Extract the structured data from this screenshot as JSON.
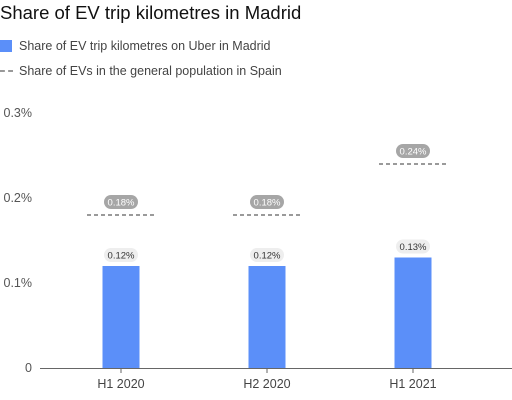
{
  "title": "Share of EV trip kilometres in Madrid",
  "legend": {
    "bar_label": "Share of EV trip kilometres on Uber in Madrid",
    "line_label": "Share of EVs in the general population in Spain"
  },
  "colors": {
    "bar": "#5b8ff9",
    "line": "#9a9a9a"
  },
  "chart_data": {
    "type": "bar",
    "categories": [
      "H1 2020",
      "H2 2020",
      "H1 2021"
    ],
    "series": [
      {
        "name": "Share of EV trip kilometres on Uber in Madrid",
        "values": [
          0.12,
          0.12,
          0.13
        ],
        "labels": [
          "0.12%",
          "0.12%",
          "0.13%"
        ],
        "mark": "bar"
      },
      {
        "name": "Share of EVs in the general population in Spain",
        "values": [
          0.18,
          0.18,
          0.24
        ],
        "labels": [
          "0.18%",
          "0.18%",
          "0.24%"
        ],
        "mark": "dashed-line"
      }
    ],
    "ylim": [
      0,
      0.3
    ],
    "yticks": [
      {
        "value": 0,
        "label": "0"
      },
      {
        "value": 0.1,
        "label": "0.1%"
      },
      {
        "value": 0.2,
        "label": "0.2%"
      },
      {
        "value": 0.3,
        "label": "0.3%"
      }
    ],
    "grid": false,
    "legend_position": "top-left"
  }
}
